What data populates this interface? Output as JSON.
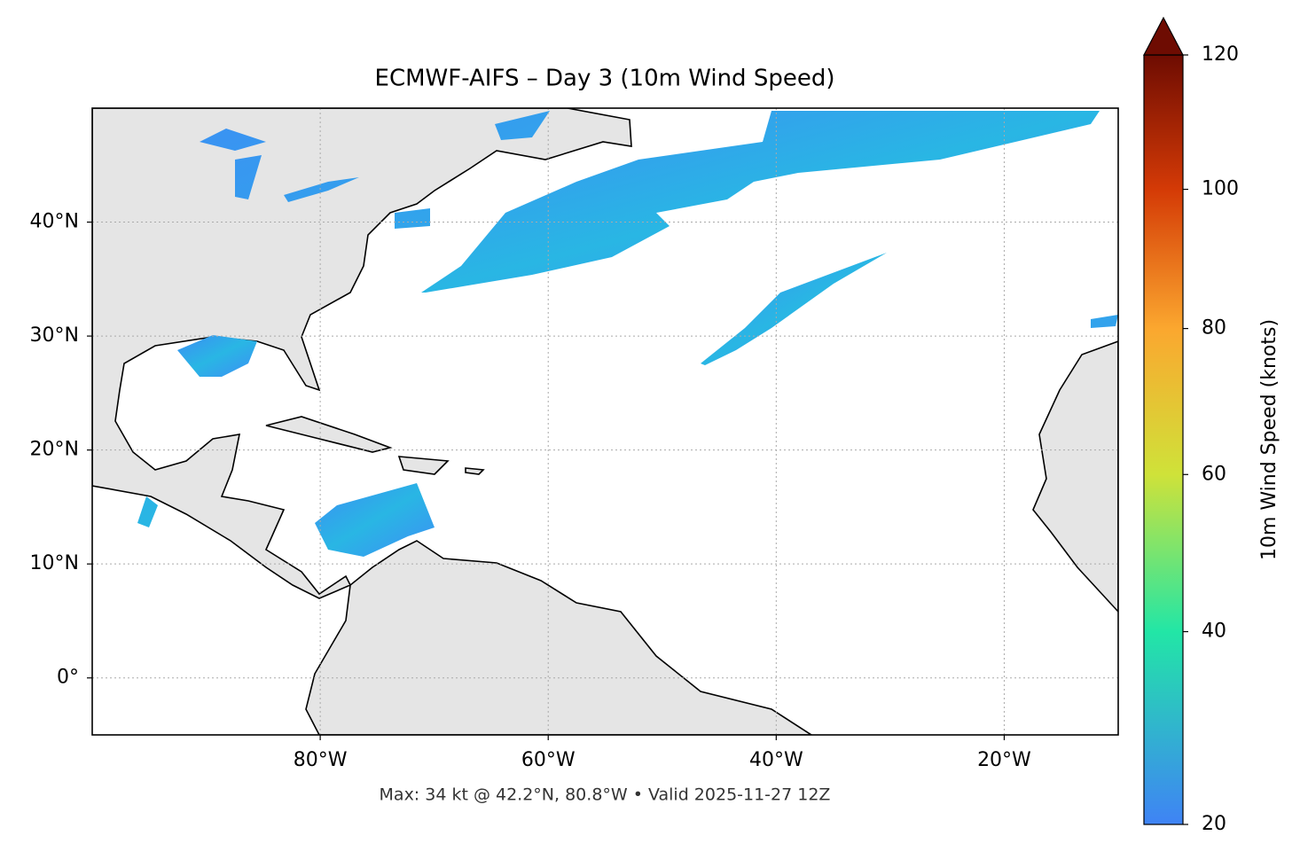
{
  "chart_data": {
    "type": "map",
    "title": "ECMWF-AIFS – Day 3 (10m Wind Speed)",
    "footer": "Max: 34 kt @ 42.2°N, 80.8°W • Valid 2025-11-27 12Z",
    "xlim": [
      -100,
      -10
    ],
    "ylim": [
      -5,
      50
    ],
    "xticks": [
      {
        "value": -80,
        "label": "80°W"
      },
      {
        "value": -60,
        "label": "60°W"
      },
      {
        "value": -40,
        "label": "40°W"
      },
      {
        "value": -20,
        "label": "20°W"
      }
    ],
    "yticks": [
      {
        "value": 0,
        "label": "0°"
      },
      {
        "value": 10,
        "label": "10°N"
      },
      {
        "value": 20,
        "label": "20°N"
      },
      {
        "value": 30,
        "label": "30°N"
      },
      {
        "value": 40,
        "label": "40°N"
      }
    ],
    "grid": true,
    "colorbar": {
      "label": "10m Wind Speed (knots)",
      "lim": [
        20,
        120
      ],
      "ticks": [
        20,
        40,
        60,
        80,
        100,
        120
      ],
      "gamma": 0.86,
      "colors": [
        "#3f83f5",
        "#22e6a6",
        "#cfe239",
        "#fba72f",
        "#d43a06",
        "#6e0c02"
      ]
    }
  }
}
